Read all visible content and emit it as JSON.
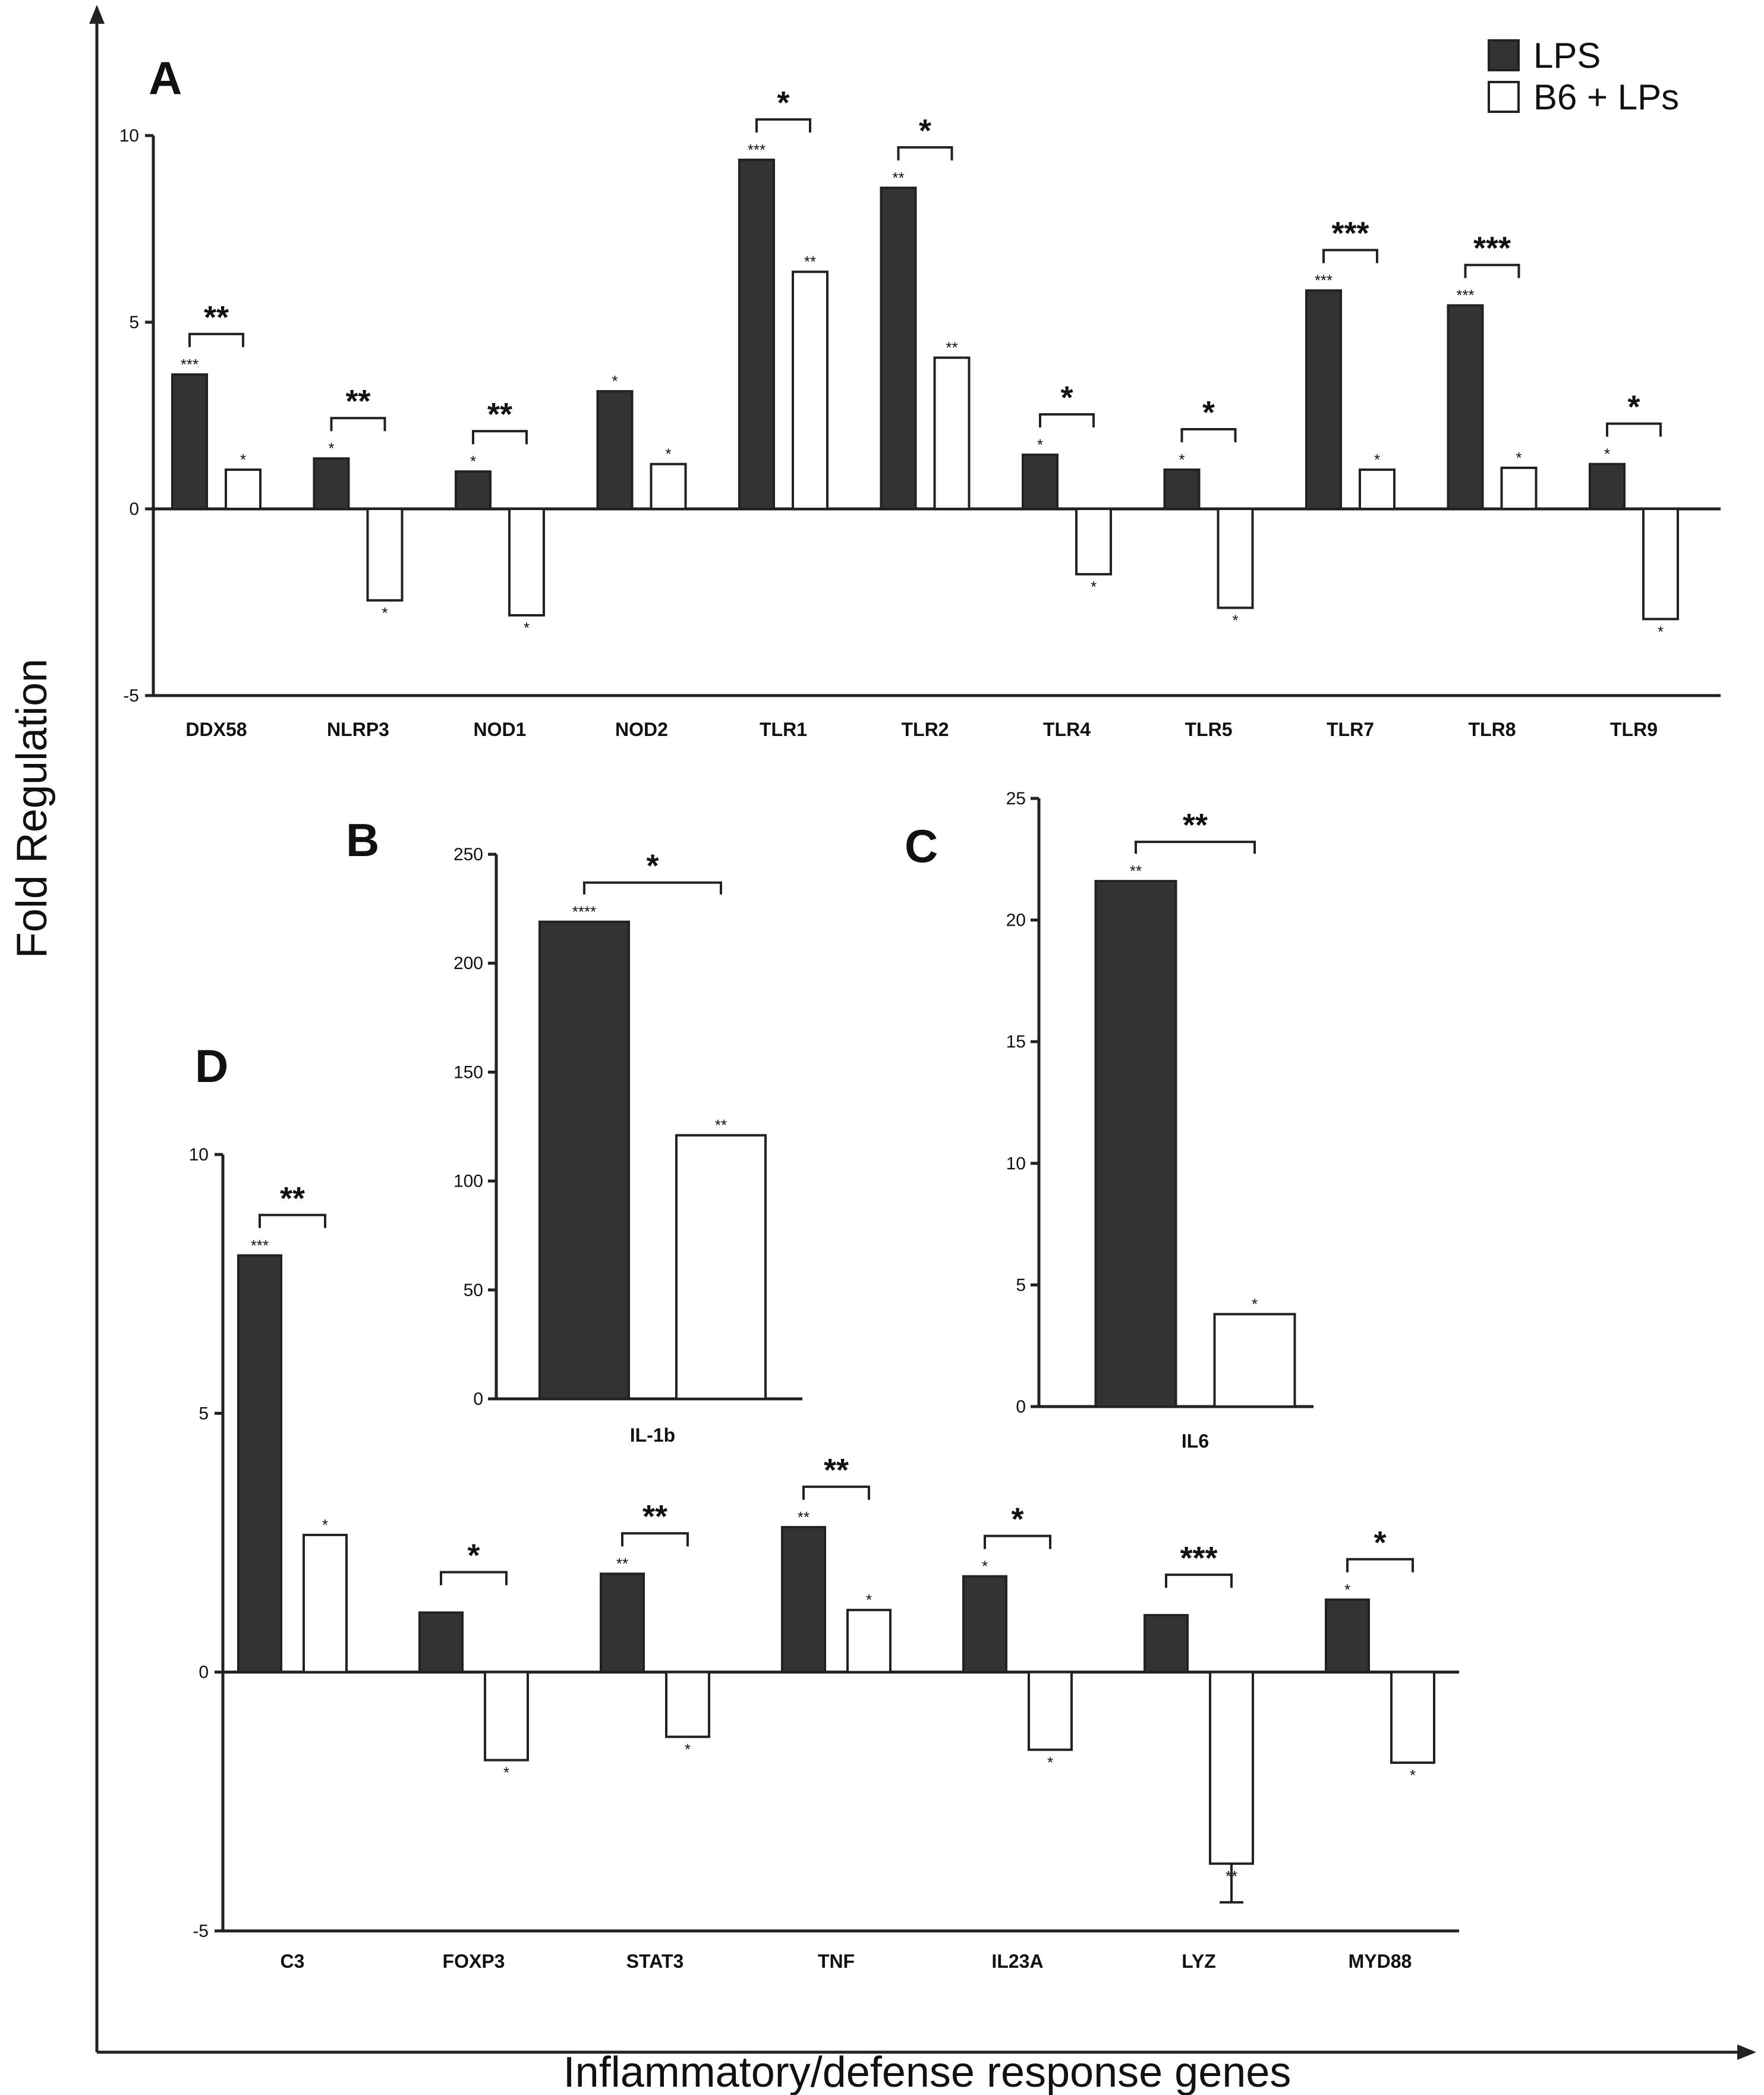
{
  "figure": {
    "ylabel": "Fold Regulation",
    "xlabel": "Inflammatory/defense response genes",
    "legend": [
      {
        "name": "LPS",
        "color": "#333333"
      },
      {
        "name": "B6 + LPs",
        "color": "#ffffff"
      }
    ]
  },
  "chart_data": [
    {
      "panel": "A",
      "type": "bar",
      "ylim": [
        -5,
        10
      ],
      "yticks": [
        -5,
        0,
        5,
        10
      ],
      "categories": [
        "DDX58",
        "NLRP3",
        "NOD1",
        "NOD2",
        "TLR1",
        "TLR2",
        "TLR4",
        "TLR5",
        "TLR7",
        "TLR8",
        "TLR9"
      ],
      "series": [
        {
          "name": "LPS",
          "values": [
            3.6,
            1.35,
            1.0,
            3.15,
            9.35,
            8.6,
            1.45,
            1.05,
            5.85,
            5.45,
            1.2
          ],
          "sig": [
            "***",
            "*",
            "*",
            "*",
            "***",
            "**",
            "*",
            "*",
            "***",
            "***",
            "*"
          ]
        },
        {
          "name": "B6 + LPs",
          "values": [
            1.05,
            -2.45,
            -2.85,
            1.2,
            6.35,
            4.05,
            -1.75,
            -2.65,
            1.05,
            1.1,
            -2.95
          ],
          "sig": [
            "*",
            "*",
            "*",
            "*",
            "**",
            "**",
            "*",
            "*",
            "*",
            "*",
            "*"
          ]
        }
      ],
      "comparisons": [
        "**",
        "**",
        "**",
        "",
        "*",
        "*",
        "*",
        "*",
        "***",
        "***",
        "*"
      ]
    },
    {
      "panel": "B",
      "type": "bar",
      "ylim": [
        0,
        250
      ],
      "yticks": [
        0,
        50,
        100,
        150,
        200,
        250
      ],
      "categories": [
        "IL-1b"
      ],
      "series": [
        {
          "name": "LPS",
          "values": [
            219
          ],
          "sig": [
            "****"
          ]
        },
        {
          "name": "B6 + LPs",
          "values": [
            121
          ],
          "sig": [
            "**"
          ]
        }
      ],
      "comparisons": [
        "*"
      ]
    },
    {
      "panel": "C",
      "type": "bar",
      "ylim": [
        0,
        25
      ],
      "yticks": [
        0,
        5,
        10,
        15,
        20,
        25
      ],
      "categories": [
        "IL6"
      ],
      "series": [
        {
          "name": "LPS",
          "values": [
            21.6
          ],
          "sig": [
            "**"
          ]
        },
        {
          "name": "B6 + LPs",
          "values": [
            3.8
          ],
          "sig": [
            "*"
          ]
        }
      ],
      "comparisons": [
        "**"
      ]
    },
    {
      "panel": "D",
      "type": "bar",
      "ylim": [
        -5,
        10
      ],
      "yticks": [
        -5,
        0,
        5,
        10
      ],
      "categories": [
        "C3",
        "FOXP3",
        "STAT3",
        "TNF",
        "IL23A",
        "LYZ",
        "MYD88"
      ],
      "series": [
        {
          "name": "LPS",
          "values": [
            8.05,
            1.15,
            1.9,
            2.8,
            1.85,
            1.1,
            1.4
          ],
          "sig": [
            "***",
            "",
            "**",
            "**",
            "*",
            "",
            "*"
          ]
        },
        {
          "name": "B6 + LPs",
          "values": [
            2.65,
            -1.7,
            -1.25,
            1.2,
            -1.5,
            -3.7,
            -1.75
          ],
          "sig": [
            "*",
            "*",
            "*",
            "*",
            "*",
            "**",
            "*"
          ]
        }
      ],
      "comparisons": [
        "**",
        "*",
        "**",
        "**",
        "*",
        "***",
        "*"
      ]
    }
  ]
}
